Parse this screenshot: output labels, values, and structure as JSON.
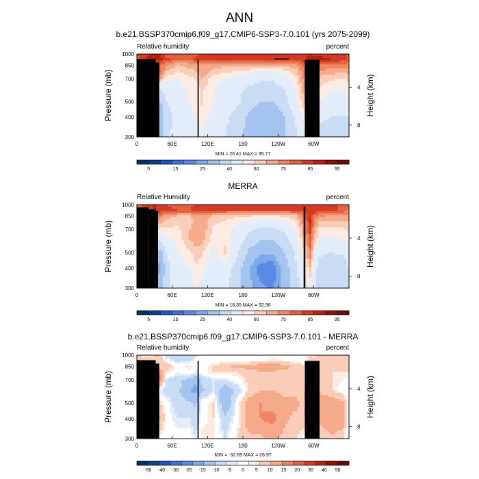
{
  "page_title": "ANN",
  "palette": {
    "full": [
      "#053061",
      "#0a3f8c",
      "#1a56c7",
      "#3a72df",
      "#5a8ae6",
      "#7ea8ec",
      "#a4c4f0",
      "#c8dcf6",
      "#e3edf9",
      "#fbebe2",
      "#f9cdb7",
      "#f5ab8b",
      "#ef8762",
      "#e6603f",
      "#d43a22",
      "#b8200f",
      "#8e1108",
      "#6a0c06"
    ],
    "diff": [
      "#053061",
      "#0a3f8c",
      "#1a56c7",
      "#3a72df",
      "#5a8ae6",
      "#7ea8ec",
      "#a4c4f0",
      "#c8dcf6",
      "#e3edf9",
      "#ffffff",
      "#fbebe2",
      "#f9cdb7",
      "#f5ab8b",
      "#ef8762",
      "#e6603f",
      "#d43a22",
      "#b8200f",
      "#8e1108",
      "#6a0c06"
    ],
    "land": "#000000"
  },
  "panels": [
    {
      "title": "b.e21.BSSP370cmip6.f09_g17.CMIP6-SSP3-7.0.101 (yrs 2075-2099)",
      "variable_label": "Relative humidity",
      "units_label": "percent",
      "minmax": "MIN =  26.41  MAX =  95.77",
      "colorbar_labels": [
        "5",
        "15",
        "25",
        "40",
        "60",
        "75",
        "85",
        "95"
      ]
    },
    {
      "title": "MERRA",
      "variable_label": "Relative Humidity",
      "units_label": "percent",
      "minmax": "MIN =  18.35  MAX =  92.96",
      "colorbar_labels": [
        "5",
        "15",
        "25",
        "40",
        "60",
        "75",
        "85",
        "95"
      ]
    },
    {
      "title": "b.e21.BSSP370cmip6.f09_g17.CMIP6-SSP3-7.0.101 - MERRA",
      "variable_label": "Relative humidity",
      "units_label": "percent",
      "minmax": "MIN = -32.89  MAX =  26.97",
      "colorbar_labels": [
        "-50",
        "-40",
        "-30",
        "-20",
        "-15",
        "-10",
        "-5",
        "0",
        "5",
        "10",
        "15",
        "20",
        "30",
        "40",
        "50"
      ]
    }
  ],
  "chart_data": [
    {
      "type": "heatmap",
      "title": "b.e21.BSSP370cmip6.f09_g17.CMIP6-SSP3-7.0.101 (yrs 2075-2099)",
      "ylabel": "Pressure (mb)",
      "y2label": "Height (km)",
      "xlim": [
        0,
        360
      ],
      "ylim": [
        1000,
        300
      ],
      "xticks": [
        {
          "v": 0,
          "l": "0"
        },
        {
          "v": 60,
          "l": "60E"
        },
        {
          "v": 120,
          "l": "120E"
        },
        {
          "v": 180,
          "l": "180"
        },
        {
          "v": 240,
          "l": "120W"
        },
        {
          "v": 300,
          "l": "60W"
        }
      ],
      "yticks": [
        300,
        400,
        500,
        700,
        850,
        1000
      ],
      "y2ticks": [
        {
          "km": 4,
          "l": "4"
        },
        {
          "km": 8,
          "l": "8"
        }
      ],
      "contour_levels": [
        5,
        10,
        15,
        20,
        25,
        30,
        40,
        50,
        60,
        65,
        70,
        75,
        80,
        85,
        90,
        95
      ],
      "min": 26.41,
      "max": 95.77,
      "grid": {
        "lon": [
          0,
          20,
          30,
          40,
          50,
          70,
          90,
          100,
          110,
          130,
          150,
          170,
          190,
          210,
          230,
          250,
          270,
          285,
          295,
          300,
          310,
          330,
          350,
          360
        ],
        "p": [
          1000,
          925,
          850,
          775,
          700,
          600,
          500,
          400,
          300
        ],
        "values": [
          [
            85,
            90,
            92,
            90,
            82,
            80,
            80,
            84,
            87,
            85,
            85,
            85,
            85,
            85,
            85,
            85,
            86,
            87,
            90,
            88,
            88,
            88,
            86,
            85
          ],
          [
            82,
            92,
            95,
            92,
            86,
            82,
            82,
            86,
            88,
            86,
            86,
            86,
            86,
            86,
            88,
            87,
            86,
            88,
            95,
            92,
            92,
            90,
            88,
            82
          ],
          [
            78,
            80,
            80,
            80,
            76,
            70,
            72,
            72,
            74,
            72,
            72,
            72,
            72,
            72,
            72,
            72,
            74,
            82,
            92,
            85,
            80,
            78,
            78,
            78
          ],
          [
            72,
            78,
            88,
            80,
            70,
            65,
            68,
            70,
            74,
            68,
            66,
            64,
            62,
            60,
            60,
            62,
            68,
            80,
            90,
            80,
            74,
            72,
            72,
            72
          ],
          [
            66,
            70,
            82,
            74,
            62,
            60,
            64,
            65,
            70,
            62,
            60,
            58,
            55,
            52,
            52,
            56,
            64,
            78,
            88,
            76,
            68,
            66,
            65,
            66
          ],
          [
            62,
            58,
            60,
            48,
            55,
            58,
            60,
            62,
            66,
            60,
            56,
            52,
            48,
            45,
            45,
            50,
            60,
            74,
            85,
            72,
            64,
            60,
            60,
            62
          ],
          [
            55,
            45,
            45,
            38,
            50,
            56,
            60,
            62,
            66,
            60,
            56,
            52,
            45,
            40,
            40,
            46,
            58,
            70,
            82,
            66,
            60,
            58,
            58,
            55
          ],
          [
            50,
            40,
            38,
            32,
            46,
            54,
            58,
            60,
            62,
            58,
            52,
            46,
            38,
            32,
            32,
            40,
            52,
            64,
            74,
            58,
            52,
            50,
            50,
            50
          ],
          [
            48,
            42,
            38,
            36,
            48,
            54,
            56,
            58,
            60,
            55,
            50,
            44,
            36,
            30,
            30,
            38,
            48,
            56,
            60,
            52,
            46,
            44,
            44,
            48
          ]
        ]
      },
      "land_boxes": [
        {
          "x0": 0,
          "x1": 32,
          "pTop": 930
        },
        {
          "x0": 25,
          "x1": 38,
          "pTop": 885
        },
        {
          "x0": 103,
          "x1": 105,
          "pTop": 920
        },
        {
          "x0": 285,
          "x1": 310,
          "pTop": 920
        }
      ],
      "line_marks": [
        {
          "x0": 233,
          "x1": 258,
          "p": 930
        }
      ]
    },
    {
      "type": "heatmap",
      "title": "MERRA",
      "ylabel": "Pressure (mb)",
      "y2label": "Height (km)",
      "xlim": [
        0,
        360
      ],
      "ylim": [
        1000,
        300
      ],
      "xticks": [
        {
          "v": 0,
          "l": "0"
        },
        {
          "v": 60,
          "l": "60E"
        },
        {
          "v": 120,
          "l": "120E"
        },
        {
          "v": 180,
          "l": "180"
        },
        {
          "v": 240,
          "l": "120W"
        },
        {
          "v": 300,
          "l": "60W"
        }
      ],
      "yticks": [
        300,
        400,
        500,
        700,
        850,
        1000
      ],
      "y2ticks": [
        {
          "km": 4,
          "l": "4"
        },
        {
          "km": 8,
          "l": "8"
        }
      ],
      "contour_levels": [
        5,
        10,
        15,
        20,
        25,
        30,
        40,
        50,
        60,
        65,
        70,
        75,
        80,
        85,
        90,
        95
      ],
      "min": 18.35,
      "max": 92.96,
      "grid": {
        "lon": [
          0,
          20,
          30,
          40,
          50,
          70,
          90,
          100,
          110,
          130,
          150,
          170,
          190,
          210,
          230,
          250,
          270,
          285,
          295,
          300,
          310,
          330,
          350,
          360
        ],
        "p": [
          1000,
          925,
          850,
          775,
          700,
          600,
          500,
          400,
          300
        ],
        "values": [
          [
            82,
            90,
            90,
            88,
            85,
            84,
            84,
            86,
            86,
            85,
            85,
            85,
            85,
            85,
            85,
            85,
            86,
            87,
            88,
            87,
            86,
            86,
            84,
            82
          ],
          [
            78,
            88,
            90,
            88,
            86,
            85,
            85,
            86,
            88,
            86,
            86,
            86,
            86,
            86,
            86,
            86,
            86,
            88,
            90,
            88,
            88,
            86,
            84,
            78
          ],
          [
            74,
            78,
            80,
            78,
            72,
            70,
            70,
            72,
            74,
            70,
            68,
            66,
            66,
            64,
            64,
            66,
            70,
            80,
            90,
            80,
            76,
            74,
            74,
            74
          ],
          [
            70,
            72,
            74,
            72,
            68,
            66,
            68,
            72,
            74,
            66,
            64,
            62,
            58,
            56,
            56,
            58,
            64,
            78,
            92,
            78,
            70,
            70,
            70,
            70
          ],
          [
            66,
            68,
            66,
            64,
            64,
            64,
            70,
            74,
            74,
            64,
            62,
            58,
            52,
            48,
            48,
            52,
            60,
            76,
            88,
            74,
            64,
            64,
            64,
            66
          ],
          [
            62,
            58,
            52,
            50,
            58,
            62,
            70,
            74,
            72,
            62,
            64,
            56,
            46,
            40,
            40,
            46,
            56,
            72,
            84,
            70,
            60,
            58,
            60,
            62
          ],
          [
            56,
            48,
            42,
            36,
            50,
            60,
            64,
            68,
            66,
            58,
            66,
            52,
            38,
            32,
            32,
            40,
            52,
            66,
            80,
            62,
            52,
            50,
            52,
            56
          ],
          [
            52,
            44,
            34,
            26,
            46,
            56,
            60,
            64,
            62,
            56,
            56,
            46,
            30,
            22,
            20,
            34,
            48,
            60,
            70,
            56,
            46,
            40,
            42,
            52
          ],
          [
            50,
            46,
            40,
            36,
            48,
            54,
            56,
            60,
            58,
            54,
            52,
            42,
            32,
            26,
            24,
            34,
            46,
            56,
            62,
            52,
            44,
            40,
            42,
            50
          ]
        ]
      },
      "land_boxes": [
        {
          "x0": 0,
          "x1": 20,
          "pTop": 960
        },
        {
          "x0": 20,
          "x1": 32,
          "pTop": 935
        },
        {
          "x0": 30,
          "x1": 36,
          "pTop": 915
        },
        {
          "x0": 283,
          "x1": 286,
          "pTop": 970
        }
      ],
      "line_marks": []
    },
    {
      "type": "heatmap",
      "title": "b.e21.BSSP370cmip6.f09_g17.CMIP6-SSP3-7.0.101 - MERRA",
      "ylabel": "Pressure (mb)",
      "y2label": "Height (km)",
      "xlim": [
        0,
        360
      ],
      "ylim": [
        1000,
        300
      ],
      "xticks": [
        {
          "v": 0,
          "l": "0"
        },
        {
          "v": 60,
          "l": "60E"
        },
        {
          "v": 120,
          "l": "120E"
        },
        {
          "v": 180,
          "l": "180"
        },
        {
          "v": 240,
          "l": "120W"
        },
        {
          "v": 300,
          "l": "60W"
        }
      ],
      "yticks": [
        300,
        400,
        500,
        700,
        850,
        1000
      ],
      "y2ticks": [
        {
          "km": 4,
          "l": "4"
        },
        {
          "km": 8,
          "l": "8"
        }
      ],
      "contour_levels": [
        -50,
        -40,
        -30,
        -20,
        -15,
        -10,
        -5,
        -2,
        -1,
        1,
        2,
        5,
        10,
        15,
        20,
        30,
        40,
        50
      ],
      "min": -32.89,
      "max": 26.97,
      "grid": {
        "lon": [
          0,
          20,
          30,
          40,
          50,
          70,
          90,
          100,
          110,
          130,
          150,
          170,
          190,
          210,
          230,
          250,
          270,
          285,
          295,
          300,
          310,
          330,
          350,
          360
        ],
        "p": [
          1000,
          925,
          850,
          775,
          700,
          600,
          500,
          400,
          300
        ],
        "values": [
          [
            3,
            0,
            2,
            2,
            -3,
            -4,
            -4,
            -2,
            1,
            0,
            0,
            0,
            0,
            0,
            0,
            0,
            0,
            0,
            2,
            1,
            2,
            2,
            2,
            3
          ],
          [
            4,
            4,
            5,
            4,
            0,
            -3,
            -3,
            0,
            0,
            0,
            0,
            0,
            0,
            0,
            2,
            1,
            0,
            0,
            5,
            4,
            4,
            4,
            4,
            4
          ],
          [
            4,
            2,
            0,
            2,
            4,
            0,
            2,
            0,
            0,
            2,
            4,
            6,
            6,
            8,
            8,
            6,
            4,
            2,
            2,
            5,
            4,
            4,
            4,
            4
          ],
          [
            2,
            6,
            14,
            8,
            2,
            -1,
            0,
            -2,
            0,
            2,
            2,
            2,
            4,
            4,
            4,
            4,
            4,
            2,
            -2,
            2,
            4,
            2,
            2,
            2
          ],
          [
            0,
            2,
            16,
            10,
            -2,
            -4,
            -6,
            -9,
            -4,
            -2,
            -2,
            0,
            3,
            4,
            4,
            4,
            4,
            2,
            0,
            2,
            4,
            2,
            1,
            0
          ],
          [
            0,
            0,
            8,
            -2,
            -3,
            -4,
            -10,
            -12,
            -6,
            -2,
            -8,
            -4,
            2,
            5,
            5,
            4,
            4,
            2,
            1,
            2,
            4,
            2,
            0,
            0
          ],
          [
            -1,
            -3,
            3,
            2,
            0,
            -4,
            -4,
            -6,
            0,
            2,
            -10,
            0,
            7,
            10,
            8,
            6,
            6,
            4,
            2,
            4,
            8,
            8,
            6,
            -1
          ],
          [
            -2,
            -4,
            4,
            6,
            0,
            -2,
            -2,
            -4,
            0,
            2,
            -4,
            0,
            8,
            10,
            12,
            6,
            4,
            4,
            4,
            2,
            6,
            10,
            8,
            -2
          ],
          [
            -2,
            -4,
            -2,
            0,
            0,
            0,
            0,
            -2,
            2,
            1,
            -2,
            2,
            4,
            4,
            6,
            4,
            2,
            0,
            -2,
            0,
            2,
            4,
            2,
            -2
          ]
        ]
      },
      "land_boxes": [
        {
          "x0": 0,
          "x1": 32,
          "pTop": 930
        },
        {
          "x0": 25,
          "x1": 38,
          "pTop": 885
        },
        {
          "x0": 103,
          "x1": 105,
          "pTop": 920
        },
        {
          "x0": 285,
          "x1": 310,
          "pTop": 920
        }
      ],
      "line_marks": []
    }
  ]
}
